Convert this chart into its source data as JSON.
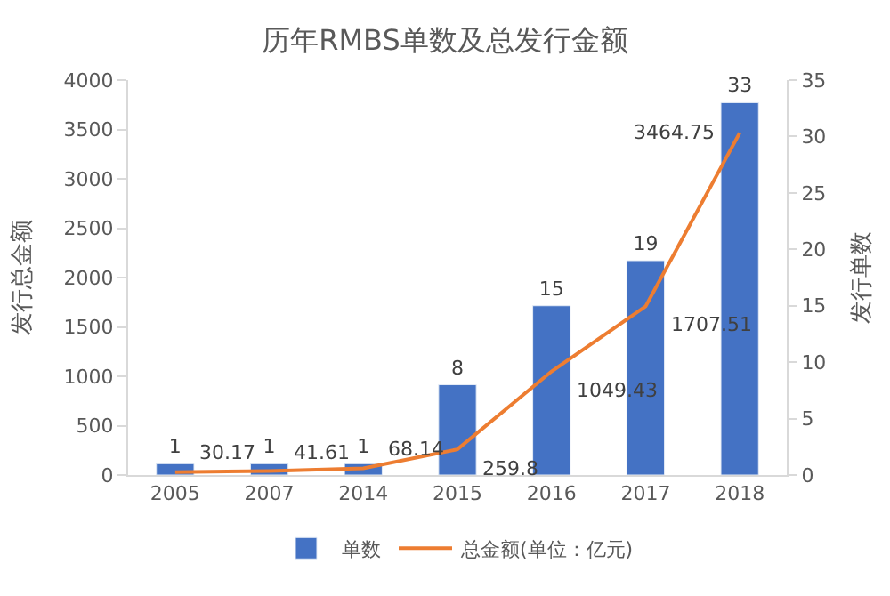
{
  "chart_data": {
    "type": "bar",
    "title": "历年RMBS单数及总发行金额",
    "ylabel": "发行总金额",
    "y2label": "发行单数",
    "categories": [
      "2005",
      "2007",
      "2014",
      "2015",
      "2016",
      "2017",
      "2018"
    ],
    "series": [
      {
        "name": "单数",
        "axis": "y2",
        "color": "#4472c4",
        "values": [
          1,
          1,
          1,
          8,
          15,
          19,
          33
        ]
      },
      {
        "name": "总金额(单位：亿元)",
        "type": "line",
        "color": "#ed7d31",
        "values": [
          30.17,
          41.61,
          68.14,
          259.8,
          1049.43,
          1707.51,
          3464.75
        ]
      }
    ],
    "ylim": [
      0,
      4000
    ],
    "yticks": [
      0,
      500,
      1000,
      1500,
      2000,
      2500,
      3000,
      3500,
      4000
    ],
    "y2lim": [
      0,
      35
    ],
    "y2ticks": [
      0,
      5,
      10,
      15,
      20,
      25,
      30,
      35
    ],
    "data_labels": true,
    "legend": "bottom",
    "marker": "none",
    "line_style": "solid"
  }
}
